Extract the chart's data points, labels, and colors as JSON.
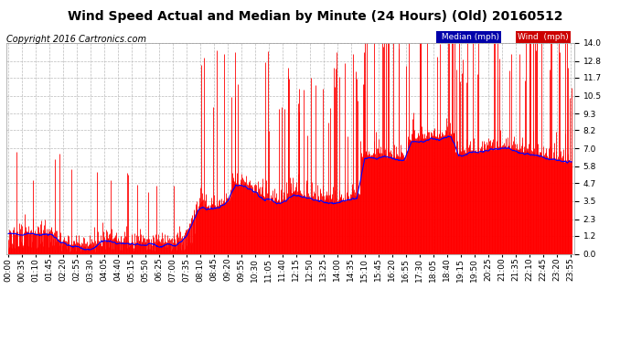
{
  "title": "Wind Speed Actual and Median by Minute (24 Hours) (Old) 20160512",
  "copyright": "Copyright 2016 Cartronics.com",
  "yticks": [
    0.0,
    1.2,
    2.3,
    3.5,
    4.7,
    5.8,
    7.0,
    8.2,
    9.3,
    10.5,
    11.7,
    12.8,
    14.0
  ],
  "ylim": [
    0.0,
    14.0
  ],
  "background_color": "#ffffff",
  "plot_bg_color": "#ffffff",
  "grid_color": "#bbbbbb",
  "wind_color": "#ff0000",
  "median_color": "#0000ff",
  "gray_color": "#666666",
  "total_minutes": 1440,
  "seed": 12345,
  "title_fontsize": 10,
  "tick_fontsize": 6.5,
  "copyright_fontsize": 7,
  "xtick_step": 35
}
